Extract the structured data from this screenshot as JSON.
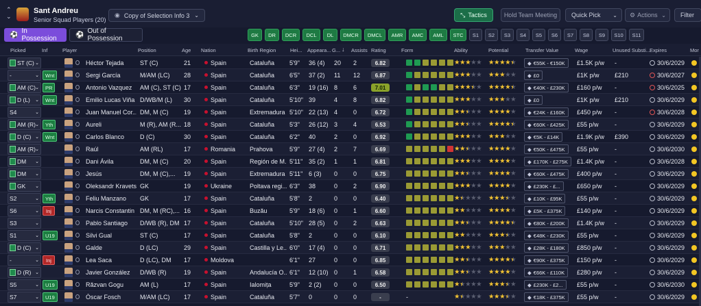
{
  "header": {
    "club": "Sant Andreu",
    "squad": "Senior Squad Players (20)",
    "view": "Copy of Selection Info 3",
    "tactics": "Tactics",
    "hold": "Hold Team Meeting",
    "quickpick": "Quick Pick",
    "actions": "Actions",
    "filter": "Filter"
  },
  "tabs": {
    "in": "In Possession",
    "out": "Out of Possession"
  },
  "positions": [
    "GK",
    "DR",
    "DCR",
    "DCL",
    "DL",
    "DMCR",
    "DMCL",
    "AMR",
    "AMC",
    "AML",
    "STC",
    "S1",
    "S2",
    "S3",
    "S4",
    "S5",
    "S6",
    "S7",
    "S8",
    "S9",
    "S10",
    "S11"
  ],
  "columns": {
    "picked": "Picked",
    "inf": "Inf",
    "player": "Player",
    "position": "Position",
    "age": "Age",
    "nation": "Nation",
    "region": "Birth Region",
    "height": "Hei...",
    "apps": "Appeara...",
    "goals": "G...",
    "assists": "Assists",
    "rating": "Rating",
    "form": "Form",
    "ability": "Ability",
    "potential": "Potential",
    "value": "Transfer Value",
    "wage": "Wage",
    "unused": "Unused Substi...",
    "expires": "Expires",
    "more": "Mor"
  },
  "colors": {
    "accent": "#7b4ddb",
    "green": "#1e7a43",
    "star": "#f1c232"
  },
  "players": [
    {
      "picked": "ST (C)",
      "pitch": true,
      "inf": "",
      "name": "Héctor Tejada",
      "pos": "ST (C)",
      "age": "21",
      "nation": "Spain",
      "region": "Cataluña",
      "height": "5'9\"",
      "apps": "36 (4)",
      "goals": "20",
      "assists": "2",
      "rating": "6.82",
      "form": [
        "g",
        "g",
        "y",
        "y",
        "y",
        "y"
      ],
      "ab": 3,
      "pot": 4.5,
      "value": "€55K - €150K",
      "wage": "£1.5K p/w",
      "unused": "-",
      "expires": "30/6/2029",
      "clk": "w"
    },
    {
      "picked": "-",
      "pitch": false,
      "inf": "Wnt",
      "name": "Sergi García",
      "pos": "M/AM (LC)",
      "age": "28",
      "nation": "Spain",
      "region": "Cataluña",
      "height": "6'5\"",
      "apps": "37 (2)",
      "goals": "11",
      "assists": "12",
      "rating": "6.87",
      "form": [
        "g",
        "y",
        "y",
        "y",
        "y",
        "y"
      ],
      "ab": 3,
      "pot": 3,
      "value": "£0",
      "wage": "£1K p/w",
      "unused": "£210",
      "expires": "30/6/2027",
      "clk": "r"
    },
    {
      "picked": "AM (C)",
      "pitch": true,
      "inf": "PR",
      "name": "Antonio Vazquez",
      "pos": "AM (C), ST (C)",
      "age": "17",
      "nation": "Spain",
      "region": "Cataluña",
      "height": "6'3\"",
      "apps": "19 (16)",
      "goals": "8",
      "assists": "6",
      "rating": "7.01",
      "form": [
        "g",
        "y",
        "g",
        "g",
        "y",
        "y"
      ],
      "ab": 3.5,
      "pot": 4.5,
      "value": "€40K - £230K",
      "wage": "£160 p/w",
      "unused": "-",
      "expires": "30/6/2025",
      "clk": "r"
    },
    {
      "picked": "D (L)",
      "pitch": true,
      "inf": "Wnt",
      "name": "Emilio Lucas Viña",
      "pos": "D/WB/M (L)",
      "age": "30",
      "nation": "Spain",
      "region": "Cataluña",
      "height": "5'10\"",
      "apps": "39",
      "goals": "4",
      "assists": "8",
      "rating": "6.82",
      "form": [
        "g",
        "y",
        "y",
        "y",
        "y",
        "y"
      ],
      "ab": 3,
      "pot": 3,
      "value": "£0",
      "wage": "£1K p/w",
      "unused": "£210",
      "expires": "30/6/2029",
      "clk": "w"
    },
    {
      "picked": "S4",
      "pitch": false,
      "inf": "",
      "name": "Juan Manuel Cor...",
      "pos": "DM, M (C)",
      "age": "19",
      "nation": "Spain",
      "region": "Extremadura",
      "height": "5'10\"",
      "apps": "22 (13)",
      "goals": "4",
      "assists": "0",
      "rating": "6.72",
      "form": [
        "g",
        "y",
        "y",
        "y",
        "y",
        "y"
      ],
      "ab": 2.5,
      "pot": 4,
      "value": "€24K - £160K",
      "wage": "£450 p/w",
      "unused": "-",
      "expires": "30/6/2028",
      "clk": "r"
    },
    {
      "picked": "AM (R)",
      "pitch": true,
      "inf": "Yth",
      "name": "Aureli",
      "pos": "M (R), AM (R...",
      "age": "18",
      "nation": "Spain",
      "region": "Cataluña",
      "height": "5'3\"",
      "apps": "26 (12)",
      "goals": "3",
      "assists": "4",
      "rating": "6.53",
      "form": [
        "g",
        "y",
        "y",
        "y",
        "y",
        "y"
      ],
      "ab": 2.5,
      "pot": 4.5,
      "value": "€60K - £425K",
      "wage": "£55 p/w",
      "unused": "-",
      "expires": "30/6/2029",
      "clk": "w"
    },
    {
      "picked": "D (C)",
      "pitch": true,
      "inf": "Wnt",
      "name": "Carlos Blanco",
      "pos": "D (C)",
      "age": "30",
      "nation": "Spain",
      "region": "Cataluña",
      "height": "6'2\"",
      "apps": "40",
      "goals": "2",
      "assists": "0",
      "rating": "6.92",
      "form": [
        "g",
        "y",
        "y",
        "y",
        "y",
        "y"
      ],
      "ab": 3,
      "pot": 3,
      "value": "€5K - £14K",
      "wage": "£1.9K p/w",
      "unused": "£390",
      "expires": "30/6/2029",
      "clk": "w"
    },
    {
      "picked": "AM (R)",
      "pitch": true,
      "inf": "",
      "name": "Raúl",
      "pos": "AM (RL)",
      "age": "17",
      "nation": "Romania",
      "region": "Prahova",
      "height": "5'9\"",
      "apps": "27 (4)",
      "goals": "2",
      "assists": "7",
      "rating": "6.69",
      "form": [
        "y",
        "y",
        "y",
        "y",
        "y",
        "r"
      ],
      "ab": 2.5,
      "pot": 4,
      "value": "€50K - £475K",
      "wage": "£55 p/w",
      "unused": "-",
      "expires": "30/6/2030",
      "clk": "w"
    },
    {
      "picked": "DM",
      "pitch": true,
      "inf": "",
      "name": "Dani Ávila",
      "pos": "DM, M (C)",
      "age": "20",
      "nation": "Spain",
      "region": "Región de M...",
      "height": "5'11\"",
      "apps": "35 (2)",
      "goals": "1",
      "assists": "1",
      "rating": "6.81",
      "form": [
        "y",
        "y",
        "y",
        "y",
        "y",
        "y"
      ],
      "ab": 3,
      "pot": 4,
      "value": "£170K - £275K",
      "wage": "£1.4K p/w",
      "unused": "-",
      "expires": "30/6/2028",
      "clk": "w"
    },
    {
      "picked": "DM",
      "pitch": true,
      "inf": "",
      "name": "Jesús",
      "pos": "DM, M (C),...",
      "age": "19",
      "nation": "Spain",
      "region": "Extremadura",
      "height": "5'11\"",
      "apps": "6 (3)",
      "goals": "0",
      "assists": "0",
      "rating": "6.75",
      "form": [
        "y",
        "y",
        "y",
        "y",
        "y",
        "y"
      ],
      "ab": 2.5,
      "pot": 4,
      "value": "€60K - £475K",
      "wage": "£400 p/w",
      "unused": "-",
      "expires": "30/6/2029",
      "clk": "w"
    },
    {
      "picked": "GK",
      "pitch": true,
      "inf": "",
      "name": "Oleksandr Kravets",
      "pos": "GK",
      "age": "19",
      "nation": "Ukraine",
      "region": "Poltava regi...",
      "height": "6'3\"",
      "apps": "38",
      "goals": "0",
      "assists": "2",
      "rating": "6.90",
      "form": [
        "y",
        "y",
        "y",
        "y",
        "y",
        "y"
      ],
      "ab": 3,
      "pot": 4,
      "value": "£230K - £...",
      "wage": "£650 p/w",
      "unused": "-",
      "expires": "30/6/2029",
      "clk": "w"
    },
    {
      "picked": "S2",
      "pitch": false,
      "inf": "Yth",
      "name": "Feliu Manzano",
      "pos": "GK",
      "age": "17",
      "nation": "Spain",
      "region": "Cataluña",
      "height": "5'8\"",
      "apps": "2",
      "goals": "0",
      "assists": "0",
      "rating": "6.40",
      "form": [
        "y",
        "y",
        "y",
        "y",
        "y",
        "y"
      ],
      "ab": 1.5,
      "pot": 3.5,
      "value": "£10K - £95K",
      "wage": "£55 p/w",
      "unused": "-",
      "expires": "30/6/2029",
      "clk": "w"
    },
    {
      "picked": "S6",
      "pitch": false,
      "inf": "Inj",
      "name": "Narcis Constantin",
      "pos": "DM, M (RC),...",
      "age": "16",
      "nation": "Spain",
      "region": "Buzău",
      "height": "5'9\"",
      "apps": "18 (6)",
      "goals": "0",
      "assists": "1",
      "rating": "6.60",
      "form": [
        "y",
        "y",
        "y",
        "y",
        "y",
        "y"
      ],
      "ab": 2,
      "pot": 4,
      "value": "£5K - £375K",
      "wage": "£140 p/w",
      "unused": "-",
      "expires": "30/6/2029",
      "clk": "w"
    },
    {
      "picked": "S3",
      "pitch": false,
      "inf": "",
      "name": "Pablo Santiago",
      "pos": "D/WB (R), DM",
      "age": "17",
      "nation": "Spain",
      "region": "Cataluña",
      "height": "5'10\"",
      "apps": "28 (5)",
      "goals": "0",
      "assists": "2",
      "rating": "6.63",
      "form": [
        "y",
        "y",
        "y",
        "y",
        "y",
        "y"
      ],
      "ab": 2.5,
      "pot": 4.5,
      "value": "€80K - £200K",
      "wage": "£1.4K p/w",
      "unused": "-",
      "expires": "30/6/2029",
      "clk": "w"
    },
    {
      "picked": "S1",
      "pitch": false,
      "inf": "U19",
      "name": "Silvi Gual",
      "pos": "ST (C)",
      "age": "17",
      "nation": "Spain",
      "region": "Cataluña",
      "height": "5'8\"",
      "apps": "2",
      "goals": "0",
      "assists": "0",
      "rating": "6.10",
      "form": [
        "y",
        "y",
        "y",
        "y",
        "y",
        "y"
      ],
      "ab": 2,
      "pot": 3.5,
      "value": "€48K - £230K",
      "wage": "£55 p/w",
      "unused": "-",
      "expires": "30/6/2029",
      "clk": "w"
    },
    {
      "picked": "D (C)",
      "pitch": true,
      "inf": "",
      "name": "Galde",
      "pos": "D (LC)",
      "age": "29",
      "nation": "Spain",
      "region": "Castilla y Le...",
      "height": "6'0\"",
      "apps": "17 (4)",
      "goals": "0",
      "assists": "0",
      "rating": "6.71",
      "form": [
        "y",
        "y",
        "y",
        "y",
        "y",
        "y"
      ],
      "ab": 3,
      "pot": 3,
      "value": "£28K - £180K",
      "wage": "£850 p/w",
      "unused": "-",
      "expires": "30/6/2029",
      "clk": "w"
    },
    {
      "picked": "-",
      "pitch": false,
      "inf": "Inj",
      "name": "Lea Saca",
      "pos": "D (LC), DM",
      "age": "17",
      "nation": "Moldova",
      "region": "",
      "height": "6'1\"",
      "apps": "27",
      "goals": "0",
      "assists": "0",
      "rating": "6.85",
      "form": [
        "y",
        "y",
        "y",
        "y",
        "y",
        "y"
      ],
      "ab": 2.5,
      "pot": 4.5,
      "value": "€90K - £375K",
      "wage": "£150 p/w",
      "unused": "-",
      "expires": "30/6/2029",
      "clk": "w"
    },
    {
      "picked": "D (R)",
      "pitch": true,
      "inf": "",
      "name": "Javier González",
      "pos": "D/WB (R)",
      "age": "19",
      "nation": "Spain",
      "region": "Andalucía O...",
      "height": "6'1\"",
      "apps": "12 (10)",
      "goals": "0",
      "assists": "1",
      "rating": "6.58",
      "form": [
        "y",
        "y",
        "y",
        "y",
        "y",
        "y"
      ],
      "ab": 2.5,
      "pot": 4,
      "value": "€66K - £110K",
      "wage": "£280 p/w",
      "unused": "-",
      "expires": "30/6/2029",
      "clk": "w"
    },
    {
      "picked": "S5",
      "pitch": false,
      "inf": "U19",
      "name": "Răzvan Gogu",
      "pos": "AM (L)",
      "age": "17",
      "nation": "Spain",
      "region": "Ialomița",
      "height": "5'9\"",
      "apps": "2 (2)",
      "goals": "0",
      "assists": "0",
      "rating": "6.50",
      "form": [
        "y",
        "y",
        "y",
        "y",
        "y",
        "y"
      ],
      "ab": 1.5,
      "pot": 3.5,
      "value": "£230K - £2...",
      "wage": "£55 p/w",
      "unused": "-",
      "expires": "30/6/2030",
      "clk": "w"
    },
    {
      "picked": "S7",
      "pitch": false,
      "inf": "U19",
      "name": "Òscar Fosch",
      "pos": "M/AM (LC)",
      "age": "17",
      "nation": "Spain",
      "region": "Cataluña",
      "height": "5'7\"",
      "apps": "0",
      "goals": "0",
      "assists": "0",
      "rating": "-",
      "form": [
        "-"
      ],
      "ab": 1.5,
      "pot": 3.5,
      "value": "€18K - £375K",
      "wage": "£55 p/w",
      "unused": "-",
      "expires": "30/6/2029",
      "clk": "w"
    }
  ]
}
